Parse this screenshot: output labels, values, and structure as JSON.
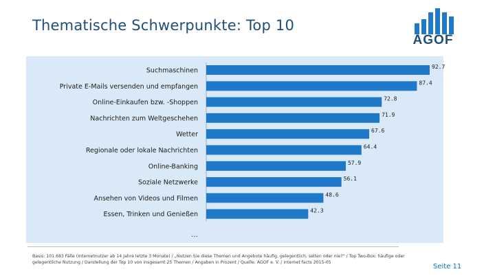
{
  "title": "Thematische Schwerpunkte: Top 10",
  "logo": {
    "text": "AGOF"
  },
  "chart_data": {
    "type": "bar",
    "orientation": "horizontal",
    "title": "Thematische Schwerpunkte: Top 10",
    "xlabel": "",
    "ylabel": "",
    "xlim": [
      0,
      100
    ],
    "categories": [
      "Suchmaschinen",
      "Private E-Mails versenden und empfangen",
      "Online-Einkaufen bzw. -Shoppen",
      "Nachrichten zum Weltgeschehen",
      "Wetter",
      "Regionale oder lokale Nachrichten",
      "Online-Banking",
      "Soziale Netzwerke",
      "Ansehen von Videos und Filmen",
      "Essen, Trinken und Genießen"
    ],
    "values": [
      92.7,
      87.4,
      72.8,
      71.9,
      67.6,
      64.4,
      57.9,
      56.1,
      48.6,
      42.3
    ],
    "value_labels": [
      "92.7",
      "87.4",
      "72.8",
      "71.9",
      "67.6",
      "64.4",
      "57.9",
      "56.1",
      "48.6",
      "42.3"
    ],
    "bar_color": "#1f78c8",
    "background_color": "#dae9f7"
  },
  "ellipsis": "…",
  "footnote": "Basis: 101.683 Fälle (Internetnutzer ab 14 Jahre letzte 3 Monate) / „Nutzen Sie diese Themen und Angebote häufig, gelegentlich, selten oder nie?“ / Top Two-Box: häufige oder gelegentliche Nutzung / Darstellung der Top 10 von insgesamt 25 Themen / Angaben in Prozent / Quelle: AGOF e. V. / internet facts 2015-05",
  "page_number": "Seite 11",
  "colors": {
    "title": "#1f4e79",
    "bar": "#1f78c8",
    "page_number": "#0070c0"
  }
}
